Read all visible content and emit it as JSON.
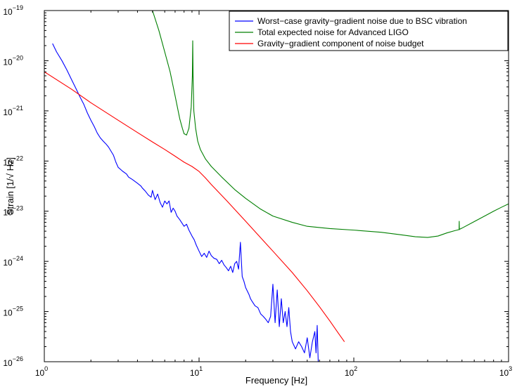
{
  "chart_data": {
    "type": "line",
    "xscale": "log",
    "yscale": "log",
    "xlim": [
      1,
      1000
    ],
    "ylim": [
      1e-26,
      1e-19
    ],
    "xlabel": "Frequency [Hz]",
    "ylabel": "Strain [1/√ Hz]",
    "grid": false,
    "legend_position": "top-right",
    "x_ticks": [
      {
        "value": 1,
        "base": "10",
        "exp": "0"
      },
      {
        "value": 10,
        "base": "10",
        "exp": "1"
      },
      {
        "value": 100,
        "base": "10",
        "exp": "2"
      },
      {
        "value": 1000,
        "base": "10",
        "exp": "3"
      }
    ],
    "y_ticks": [
      {
        "value": 1e-26,
        "base": "10",
        "exp": "−26"
      },
      {
        "value": 1e-25,
        "base": "10",
        "exp": "−25"
      },
      {
        "value": 1e-24,
        "base": "10",
        "exp": "−24"
      },
      {
        "value": 1e-23,
        "base": "10",
        "exp": "−23"
      },
      {
        "value": 1e-22,
        "base": "10",
        "exp": "−22"
      },
      {
        "value": 1e-21,
        "base": "10",
        "exp": "−21"
      },
      {
        "value": 1e-20,
        "base": "10",
        "exp": "−20"
      },
      {
        "value": 1e-19,
        "base": "10",
        "exp": "−19"
      }
    ],
    "series": [
      {
        "name": "Worst−case gravity−gradient noise due to BSC vibration",
        "color": "#0000ff",
        "x": [
          1.13,
          1.2,
          1.3,
          1.4,
          1.5,
          1.6,
          1.7,
          1.8,
          1.9,
          2.0,
          2.1,
          2.2,
          2.3,
          2.4,
          2.5,
          2.6,
          2.8,
          2.9,
          3.0,
          3.2,
          3.4,
          3.5,
          3.7,
          4.0,
          4.2,
          4.3,
          4.5,
          4.7,
          4.9,
          5.0,
          5.2,
          5.4,
          5.6,
          5.8,
          6.0,
          6.2,
          6.4,
          6.6,
          6.8,
          7.0,
          7.2,
          7.5,
          7.7,
          8.0,
          8.3,
          8.6,
          9.0,
          9.3,
          9.6,
          10.0,
          10.4,
          10.8,
          11.2,
          11.6,
          12.0,
          12.5,
          13.0,
          13.5,
          14.0,
          14.5,
          15.0,
          15.5,
          16.0,
          16.5,
          17.0,
          17.5,
          18.0,
          18.5,
          19.0,
          19.5,
          20.0,
          21.0,
          21.5,
          22.0,
          23.0,
          24.0,
          25.0,
          26.0,
          27.0,
          28.0,
          29.0,
          30.0,
          31.0,
          32.0,
          33.0,
          34.0,
          35.0,
          36.0,
          37.0,
          38.0,
          39.0,
          40.0,
          42.0,
          44.0,
          46.0,
          48.0,
          50.0,
          52.0,
          54.0,
          56.0,
          57.0,
          58.0,
          59.0,
          60.0
        ],
        "y": [
          2.2e-20,
          1.5e-20,
          1e-20,
          6.5e-21,
          4.2e-21,
          2.8e-21,
          1.9e-21,
          1.35e-21,
          9e-22,
          6.5e-22,
          4.9e-22,
          3.6e-22,
          2.9e-22,
          2.5e-22,
          2.2e-22,
          1.9e-22,
          1.3e-22,
          9.5e-23,
          7.5e-23,
          6.3e-23,
          5.5e-23,
          4.8e-23,
          4.3e-23,
          3.6e-23,
          3.2e-23,
          2.9e-23,
          2.5e-23,
          2.1e-23,
          1.9e-23,
          2.6e-23,
          1.7e-23,
          2.2e-23,
          1.5e-23,
          1.2e-23,
          1.6e-23,
          1.4e-23,
          1.6e-23,
          9.5e-24,
          1.15e-23,
          1e-23,
          8e-24,
          6.8e-24,
          6e-24,
          5e-24,
          5.5e-24,
          4.2e-24,
          3.2e-24,
          2.7e-24,
          2.1e-24,
          1.6e-24,
          1.25e-24,
          1.45e-24,
          1.2e-24,
          1.6e-24,
          1.3e-24,
          1.15e-24,
          1.1e-24,
          9e-25,
          1.05e-24,
          8.5e-25,
          7.5e-25,
          6.5e-25,
          8e-25,
          6e-25,
          9e-25,
          1e-24,
          7e-25,
          2.4e-24,
          5e-25,
          4e-25,
          3e-25,
          2.2e-25,
          1.8e-25,
          1.6e-25,
          1.3e-25,
          1.2e-25,
          9e-26,
          8e-26,
          7e-26,
          6e-26,
          8e-26,
          3.5e-25,
          6e-26,
          2.7e-25,
          5e-26,
          1.8e-25,
          6e-26,
          1e-25,
          5e-26,
          1.2e-25,
          4e-26,
          2.5e-26,
          1.8e-26,
          2.5e-26,
          2e-26,
          1.5e-26,
          3e-26,
          1.2e-26,
          2.5e-26,
          4e-26,
          1.5e-26,
          5.3e-26,
          8e-27,
          1e-26
        ]
      },
      {
        "name": "Total expected noise for Advanced LIGO",
        "color": "#007f00",
        "x": [
          5.0,
          5.5,
          6.0,
          6.5,
          7.0,
          7.5,
          7.8,
          8.0,
          8.3,
          8.6,
          8.9,
          9.05,
          9.1,
          9.15,
          9.25,
          9.5,
          9.8,
          10.2,
          11.0,
          12.0,
          14.0,
          17.0,
          20.0,
          25.0,
          30.0,
          40.0,
          50.0,
          70.0,
          100.0,
          150.0,
          200.0,
          250.0,
          300.0,
          350.0,
          400.0,
          450.0,
          479.0,
          480.0,
          481.0,
          482.0,
          500.0,
          600.0,
          700.0,
          800.0,
          900.0,
          1000.0
        ],
        "y": [
          1e-19,
          4e-20,
          1.5e-20,
          6e-21,
          2e-21,
          7e-22,
          4.5e-22,
          3.5e-22,
          3.3e-22,
          4.5e-22,
          1.2e-21,
          5e-21,
          2.5e-20,
          5e-21,
          1e-21,
          4.5e-22,
          2.5e-22,
          1.7e-22,
          1.1e-22,
          7.8e-23,
          4.8e-23,
          2.7e-23,
          1.8e-23,
          1.1e-23,
          8e-24,
          6e-24,
          5e-24,
          4.5e-24,
          4.2e-24,
          3.8e-24,
          3.4e-24,
          3.1e-24,
          3e-24,
          3.2e-24,
          3.7e-24,
          4.1e-24,
          4.3e-24,
          6.3e-24,
          4.3e-24,
          4.35e-24,
          4.6e-24,
          6.2e-24,
          8e-24,
          1e-23,
          1.2e-23,
          1.4e-23
        ]
      },
      {
        "name": "Gravity−gradient component of noise budget",
        "color": "#ff0000",
        "x": [
          1.0,
          1.5,
          2.0,
          3.0,
          4.0,
          5.0,
          6.0,
          7.0,
          8.0,
          9.0,
          10.0,
          11.0,
          12.0,
          15.0,
          20.0,
          30.0,
          40.0,
          50.0,
          60.0,
          70.0,
          80.0,
          87.0
        ],
        "y": [
          6e-21,
          2.7e-21,
          1.45e-21,
          6.5e-22,
          3.7e-22,
          2.4e-22,
          1.7e-22,
          1.25e-22,
          9.5e-23,
          7.8e-23,
          6.2e-23,
          4.6e-23,
          3.4e-23,
          1.65e-23,
          6.3e-24,
          1.6e-24,
          6e-25,
          2.6e-25,
          1.25e-25,
          6.5e-26,
          3.6e-26,
          2.5e-26
        ]
      }
    ]
  }
}
